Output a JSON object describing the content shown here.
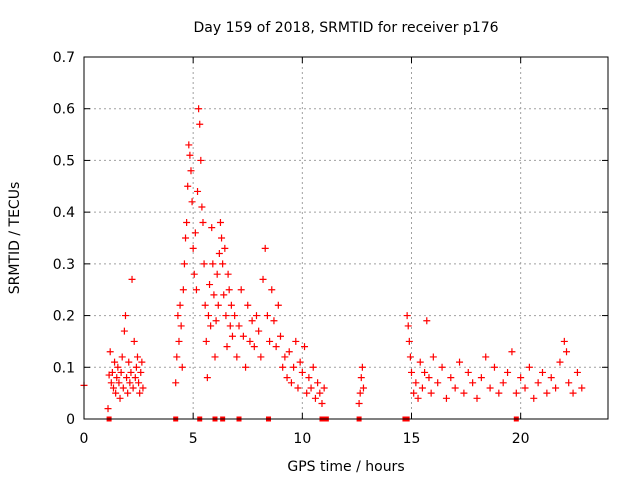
{
  "chart_data": {
    "type": "scatter",
    "title": "Day 159 of 2018, SRMTID for receiver p176",
    "xlabel": "GPS time / hours",
    "ylabel": "SRMTID / TECUs",
    "xlim": [
      0,
      24
    ],
    "ylim": [
      0,
      0.7
    ],
    "xticks": [
      0,
      5,
      10,
      15,
      20
    ],
    "xtick_labels": [
      "0",
      "5",
      "10",
      "15",
      "20"
    ],
    "yticks": [
      0,
      0.1,
      0.2,
      0.3,
      0.4,
      0.5,
      0.6,
      0.7
    ],
    "ytick_labels": [
      "0",
      "0.1",
      "0.2",
      "0.3",
      "0.4",
      "0.5",
      "0.6",
      "0.7"
    ],
    "grid": true,
    "marker": "plus",
    "color": "#ff0000",
    "series": [
      {
        "name": "SRMTID",
        "points": [
          [
            0.0,
            0.065
          ],
          [
            1.1,
            0.02
          ],
          [
            1.15,
            0.085
          ],
          [
            1.2,
            0.13
          ],
          [
            1.25,
            0.07
          ],
          [
            1.3,
            0.09
          ],
          [
            1.35,
            0.06
          ],
          [
            1.4,
            0.11
          ],
          [
            1.45,
            0.05
          ],
          [
            1.5,
            0.08
          ],
          [
            1.55,
            0.1
          ],
          [
            1.6,
            0.07
          ],
          [
            1.65,
            0.04
          ],
          [
            1.7,
            0.09
          ],
          [
            1.75,
            0.12
          ],
          [
            1.8,
            0.06
          ],
          [
            1.85,
            0.17
          ],
          [
            1.9,
            0.2
          ],
          [
            1.95,
            0.08
          ],
          [
            2.0,
            0.05
          ],
          [
            2.05,
            0.11
          ],
          [
            2.1,
            0.07
          ],
          [
            2.15,
            0.09
          ],
          [
            2.2,
            0.27
          ],
          [
            2.25,
            0.06
          ],
          [
            2.3,
            0.15
          ],
          [
            2.35,
            0.08
          ],
          [
            2.4,
            0.1
          ],
          [
            2.45,
            0.12
          ],
          [
            2.5,
            0.07
          ],
          [
            2.55,
            0.05
          ],
          [
            2.6,
            0.09
          ],
          [
            2.65,
            0.11
          ],
          [
            2.7,
            0.06
          ],
          [
            4.2,
            0.07
          ],
          [
            4.25,
            0.12
          ],
          [
            4.3,
            0.2
          ],
          [
            4.35,
            0.15
          ],
          [
            4.4,
            0.22
          ],
          [
            4.45,
            0.18
          ],
          [
            4.5,
            0.1
          ],
          [
            4.55,
            0.25
          ],
          [
            4.6,
            0.3
          ],
          [
            4.65,
            0.35
          ],
          [
            4.7,
            0.38
          ],
          [
            4.75,
            0.45
          ],
          [
            4.8,
            0.53
          ],
          [
            4.85,
            0.51
          ],
          [
            4.9,
            0.48
          ],
          [
            4.95,
            0.42
          ],
          [
            5.0,
            0.33
          ],
          [
            5.05,
            0.28
          ],
          [
            5.1,
            0.36
          ],
          [
            5.15,
            0.25
          ],
          [
            5.2,
            0.44
          ],
          [
            5.25,
            0.6
          ],
          [
            5.3,
            0.57
          ],
          [
            5.35,
            0.5
          ],
          [
            5.4,
            0.41
          ],
          [
            5.45,
            0.38
          ],
          [
            5.5,
            0.3
          ],
          [
            5.55,
            0.22
          ],
          [
            5.6,
            0.15
          ],
          [
            5.65,
            0.08
          ],
          [
            5.7,
            0.2
          ],
          [
            5.75,
            0.26
          ],
          [
            5.8,
            0.18
          ],
          [
            5.85,
            0.37
          ],
          [
            5.9,
            0.3
          ],
          [
            5.95,
            0.24
          ],
          [
            6.0,
            0.12
          ],
          [
            6.05,
            0.19
          ],
          [
            6.1,
            0.28
          ],
          [
            6.15,
            0.22
          ],
          [
            6.2,
            0.32
          ],
          [
            6.25,
            0.38
          ],
          [
            6.3,
            0.35
          ],
          [
            6.35,
            0.3
          ],
          [
            6.4,
            0.24
          ],
          [
            6.45,
            0.33
          ],
          [
            6.5,
            0.2
          ],
          [
            6.55,
            0.14
          ],
          [
            6.6,
            0.28
          ],
          [
            6.65,
            0.25
          ],
          [
            6.7,
            0.18
          ],
          [
            6.75,
            0.22
          ],
          [
            6.8,
            0.16
          ],
          [
            6.9,
            0.2
          ],
          [
            7.0,
            0.12
          ],
          [
            7.1,
            0.18
          ],
          [
            7.2,
            0.25
          ],
          [
            7.3,
            0.16
          ],
          [
            7.4,
            0.1
          ],
          [
            7.5,
            0.22
          ],
          [
            7.6,
            0.15
          ],
          [
            7.7,
            0.19
          ],
          [
            7.8,
            0.14
          ],
          [
            7.9,
            0.2
          ],
          [
            8.0,
            0.17
          ],
          [
            8.1,
            0.12
          ],
          [
            8.2,
            0.27
          ],
          [
            8.3,
            0.33
          ],
          [
            8.4,
            0.2
          ],
          [
            8.5,
            0.15
          ],
          [
            8.6,
            0.25
          ],
          [
            8.7,
            0.19
          ],
          [
            8.8,
            0.14
          ],
          [
            8.9,
            0.22
          ],
          [
            9.0,
            0.16
          ],
          [
            9.1,
            0.1
          ],
          [
            9.2,
            0.12
          ],
          [
            9.3,
            0.08
          ],
          [
            9.4,
            0.13
          ],
          [
            9.5,
            0.07
          ],
          [
            9.6,
            0.1
          ],
          [
            9.7,
            0.15
          ],
          [
            9.8,
            0.06
          ],
          [
            9.9,
            0.11
          ],
          [
            10.0,
            0.09
          ],
          [
            10.1,
            0.14
          ],
          [
            10.2,
            0.05
          ],
          [
            10.3,
            0.08
          ],
          [
            10.4,
            0.06
          ],
          [
            10.5,
            0.1
          ],
          [
            10.6,
            0.04
          ],
          [
            10.7,
            0.07
          ],
          [
            10.8,
            0.05
          ],
          [
            10.9,
            0.03
          ],
          [
            11.0,
            0.06
          ],
          [
            12.6,
            0.03
          ],
          [
            12.65,
            0.05
          ],
          [
            12.7,
            0.08
          ],
          [
            12.75,
            0.1
          ],
          [
            12.8,
            0.06
          ],
          [
            14.8,
            0.2
          ],
          [
            14.85,
            0.18
          ],
          [
            14.9,
            0.15
          ],
          [
            14.95,
            0.12
          ],
          [
            15.0,
            0.09
          ],
          [
            15.1,
            0.05
          ],
          [
            15.2,
            0.07
          ],
          [
            15.3,
            0.04
          ],
          [
            15.4,
            0.11
          ],
          [
            15.5,
            0.06
          ],
          [
            15.6,
            0.09
          ],
          [
            15.7,
            0.19
          ],
          [
            15.8,
            0.08
          ],
          [
            15.9,
            0.05
          ],
          [
            16.0,
            0.12
          ],
          [
            16.2,
            0.07
          ],
          [
            16.4,
            0.1
          ],
          [
            16.6,
            0.04
          ],
          [
            16.8,
            0.08
          ],
          [
            17.0,
            0.06
          ],
          [
            17.2,
            0.11
          ],
          [
            17.4,
            0.05
          ],
          [
            17.6,
            0.09
          ],
          [
            17.8,
            0.07
          ],
          [
            18.0,
            0.04
          ],
          [
            18.2,
            0.08
          ],
          [
            18.4,
            0.12
          ],
          [
            18.6,
            0.06
          ],
          [
            18.8,
            0.1
          ],
          [
            19.0,
            0.05
          ],
          [
            19.2,
            0.07
          ],
          [
            19.4,
            0.09
          ],
          [
            19.6,
            0.13
          ],
          [
            19.8,
            0.05
          ],
          [
            20.0,
            0.08
          ],
          [
            20.2,
            0.06
          ],
          [
            20.4,
            0.1
          ],
          [
            20.6,
            0.04
          ],
          [
            20.8,
            0.07
          ],
          [
            21.0,
            0.09
          ],
          [
            21.2,
            0.05
          ],
          [
            21.4,
            0.08
          ],
          [
            21.6,
            0.06
          ],
          [
            21.8,
            0.11
          ],
          [
            22.0,
            0.15
          ],
          [
            22.1,
            0.13
          ],
          [
            22.2,
            0.07
          ],
          [
            22.4,
            0.05
          ],
          [
            22.6,
            0.09
          ],
          [
            22.8,
            0.06
          ]
        ]
      }
    ],
    "baseline_markers_x": [
      1.15,
      4.2,
      5.3,
      6.0,
      6.35,
      7.1,
      8.45,
      10.9,
      11.1,
      12.6,
      14.7,
      14.8,
      19.8
    ]
  }
}
